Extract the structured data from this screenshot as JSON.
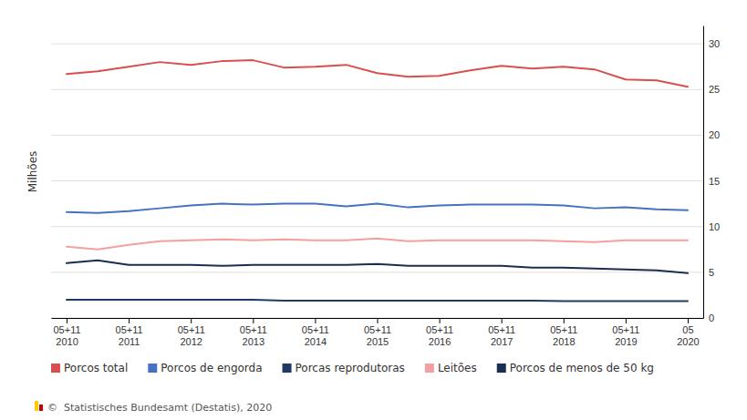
{
  "chart_data": {
    "type": "line",
    "categories": [
      "05+11\n2010",
      null,
      "05+11\n2011",
      null,
      "05+11\n2012",
      null,
      "05+11\n2013",
      null,
      "05+11\n2014",
      null,
      "05+11\n2015",
      null,
      "05+11\n2016",
      null,
      "05+11\n2017",
      null,
      "05+11\n2018",
      null,
      "05+11\n2019",
      null,
      "05\n2020"
    ],
    "series": [
      {
        "name": "Porcos total",
        "color": "#d94f4f",
        "values": [
          26.7,
          27.0,
          27.5,
          28.0,
          27.7,
          28.1,
          28.2,
          27.4,
          27.5,
          27.7,
          26.8,
          26.4,
          26.5,
          27.1,
          27.6,
          27.3,
          27.5,
          27.2,
          26.1,
          26.0,
          25.3
        ]
      },
      {
        "name": "Porcos de engorda",
        "color": "#4472c4",
        "values": [
          11.6,
          11.5,
          11.7,
          12.0,
          12.3,
          12.5,
          12.4,
          12.5,
          12.5,
          12.2,
          12.5,
          12.1,
          12.3,
          12.4,
          12.4,
          12.4,
          12.3,
          12.0,
          12.1,
          11.9,
          11.8
        ]
      },
      {
        "name": "Porcas reprodutoras",
        "color": "#1f3864",
        "values": [
          2.0,
          2.0,
          2.0,
          2.0,
          2.0,
          2.0,
          2.0,
          1.9,
          1.9,
          1.9,
          1.9,
          1.9,
          1.9,
          1.9,
          1.9,
          1.9,
          1.85,
          1.85,
          1.85,
          1.85,
          1.85
        ]
      },
      {
        "name": "Leitões",
        "color": "#f4a0a0",
        "values": [
          7.8,
          7.5,
          8.0,
          8.4,
          8.5,
          8.6,
          8.5,
          8.6,
          8.5,
          8.5,
          8.7,
          8.4,
          8.5,
          8.5,
          8.5,
          8.5,
          8.4,
          8.3,
          8.5,
          8.5,
          8.5
        ]
      },
      {
        "name": "Porcos de menos de 50 kg",
        "color": "#1a2e52",
        "values": [
          6.0,
          6.3,
          5.8,
          5.8,
          5.8,
          5.7,
          5.8,
          5.8,
          5.8,
          5.8,
          5.9,
          5.7,
          5.7,
          5.7,
          5.7,
          5.5,
          5.5,
          5.4,
          5.3,
          5.2,
          4.9
        ]
      }
    ],
    "y_label": "Milhões",
    "ylim": [
      0,
      32
    ],
    "yticks": [
      0,
      5,
      10,
      15,
      20,
      25,
      30
    ],
    "grid": true,
    "legend": "bottom",
    "annotations": [
      "©  Statistisches Bundesamt (Destatis), 2020"
    ]
  }
}
